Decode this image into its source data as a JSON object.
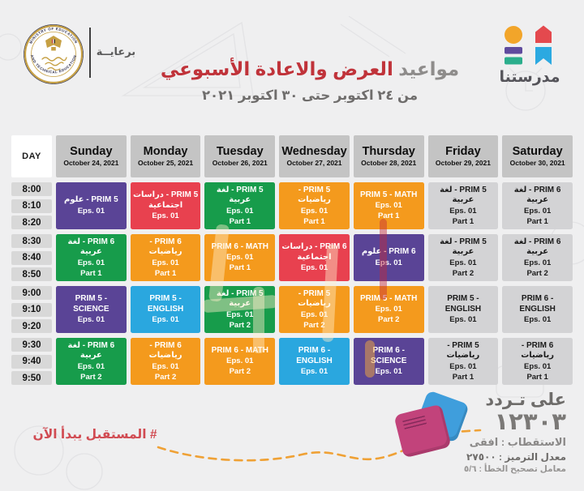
{
  "header": {
    "sponsor_label": "برعايــة",
    "seal": {
      "ring_text_top": "MINISTRY OF EDUCATION",
      "ring_text_bottom": "AND TECHNICAL EDUCATION"
    },
    "brand": {
      "name": "مدرستنا",
      "colors": {
        "circle": "#F2A52A",
        "house": "#E4494E",
        "bar_purple": "#5F4B9E",
        "bar_green": "#2BAE8C",
        "ribbon_blue": "#2BA9E1"
      }
    },
    "title_prefix": "مواعيد",
    "title_main": "العرض والاعادة الأسبوعي",
    "date_range": "من ٢٤ اكتوبر حتى ٣٠ اكتوبر ٢٠٢١"
  },
  "palette": {
    "purple": "#5A4496",
    "red": "#E8414F",
    "green": "#179C4B",
    "orange": "#F49A1D",
    "blue": "#2AA7DF",
    "gray": "#D3D3D5",
    "title_red": "#C0333A",
    "hashtag_red": "#D14B52"
  },
  "table": {
    "day_header": "DAY",
    "days": [
      {
        "name": "Sunday",
        "date": "October 24, 2021"
      },
      {
        "name": "Monday",
        "date": "October 25, 2021"
      },
      {
        "name": "Tuesday",
        "date": "October 26, 2021"
      },
      {
        "name": "Wednesday",
        "date": "October 27, 2021"
      },
      {
        "name": "Thursday",
        "date": "October 28, 2021"
      },
      {
        "name": "Friday",
        "date": "October 29, 2021"
      },
      {
        "name": "Saturday",
        "date": "October 30, 2021"
      }
    ],
    "rows": [
      {
        "times": [
          "8:00",
          "8:10",
          "8:20"
        ],
        "cells": [
          {
            "title": "PRIM 5 - علوم",
            "eps": "Eps. 01",
            "part": "",
            "color": "purple"
          },
          {
            "title": "PRIM 5 - دراسات اجتماعية",
            "eps": "Eps. 01",
            "part": "",
            "color": "red"
          },
          {
            "title": "PRIM 5 - لغة عربية",
            "eps": "Eps. 01",
            "part": "Part 1",
            "color": "green"
          },
          {
            "title": "PRIM 5 - رياضيات",
            "eps": "Eps. 01",
            "part": "Part 1",
            "color": "orange"
          },
          {
            "title": "PRIM 5 - MATH",
            "eps": "Eps. 01",
            "part": "Part 1",
            "color": "orange"
          },
          {
            "title": "PRIM 5 - لغة عربية",
            "eps": "Eps. 01",
            "part": "Part 1",
            "color": "gray"
          },
          {
            "title": "PRIM 6 - لغة عربية",
            "eps": "Eps. 01",
            "part": "Part 1",
            "color": "gray"
          }
        ]
      },
      {
        "times": [
          "8:30",
          "8:40",
          "8:50"
        ],
        "cells": [
          {
            "title": "PRIM 6 - لغة عربية",
            "eps": "Eps. 01",
            "part": "Part 1",
            "color": "green"
          },
          {
            "title": "PRIM 6 - رياضيات",
            "eps": "Eps. 01",
            "part": "Part 1",
            "color": "orange"
          },
          {
            "title": "PRIM 6 - MATH",
            "eps": "Eps. 01",
            "part": "Part 1",
            "color": "orange"
          },
          {
            "title": "PRIM 6 - دراسات اجتماعية",
            "eps": "Eps. 01",
            "part": "",
            "color": "red"
          },
          {
            "title": "PRIM 6 - علوم",
            "eps": "Eps. 01",
            "part": "",
            "color": "purple"
          },
          {
            "title": "PRIM 5 - لغة عربية",
            "eps": "Eps. 01",
            "part": "Part 2",
            "color": "gray"
          },
          {
            "title": "PRIM 6 - لغة عربية",
            "eps": "Eps. 01",
            "part": "Part 2",
            "color": "gray"
          }
        ]
      },
      {
        "times": [
          "9:00",
          "9:10",
          "9:20"
        ],
        "cells": [
          {
            "title": "PRIM 5 - SCIENCE",
            "eps": "Eps. 01",
            "part": "",
            "color": "purple"
          },
          {
            "title": "PRIM 5 - ENGLISH",
            "eps": "Eps. 01",
            "part": "",
            "color": "blue"
          },
          {
            "title": "PRIM 5 - لغة عربية",
            "eps": "Eps. 01",
            "part": "Part 2",
            "color": "green"
          },
          {
            "title": "PRIM 5 - رياضيات",
            "eps": "Eps. 01",
            "part": "Part 2",
            "color": "orange"
          },
          {
            "title": "PRIM 5 - MATH",
            "eps": "Eps. 01",
            "part": "Part 2",
            "color": "orange"
          },
          {
            "title": "PRIM 5 - ENGLISH",
            "eps": "Eps. 01",
            "part": "",
            "color": "gray"
          },
          {
            "title": "PRIM 6 - ENGLISH",
            "eps": "Eps. 01",
            "part": "",
            "color": "gray"
          }
        ]
      },
      {
        "times": [
          "9:30",
          "9:40",
          "9:50"
        ],
        "cells": [
          {
            "title": "PRIM 6 - لغة عربية",
            "eps": "Eps. 01",
            "part": "Part 2",
            "color": "green"
          },
          {
            "title": "PRIM 6 - رياضيات",
            "eps": "Eps. 01",
            "part": "Part 2",
            "color": "orange"
          },
          {
            "title": "PRIM 6 - MATH",
            "eps": "Eps. 01",
            "part": "Part 2",
            "color": "orange"
          },
          {
            "title": "PRIM 6 - ENGLISH",
            "eps": "Eps. 01",
            "part": "",
            "color": "blue"
          },
          {
            "title": "PRIM 6 - SCIENCE",
            "eps": "Eps. 01",
            "part": "",
            "color": "purple"
          },
          {
            "title": "PRIM 5 - رياضيات",
            "eps": "Eps. 01",
            "part": "Part 1",
            "color": "gray"
          },
          {
            "title": "PRIM 6 - رياضيات",
            "eps": "Eps. 01",
            "part": "Part 1",
            "color": "gray"
          }
        ]
      }
    ]
  },
  "footer": {
    "hashtag": "# المستقبل يبدأ الآن",
    "frequency_label": "على تـردد",
    "frequency_value": "١٢٣٠٣",
    "polarization": "الاستقطاب : افقى",
    "symbol_rate": "معدل الترميز : ٢٧٥٠٠",
    "fec": "معامل تصحيح الخطأ : ٥/٦"
  }
}
